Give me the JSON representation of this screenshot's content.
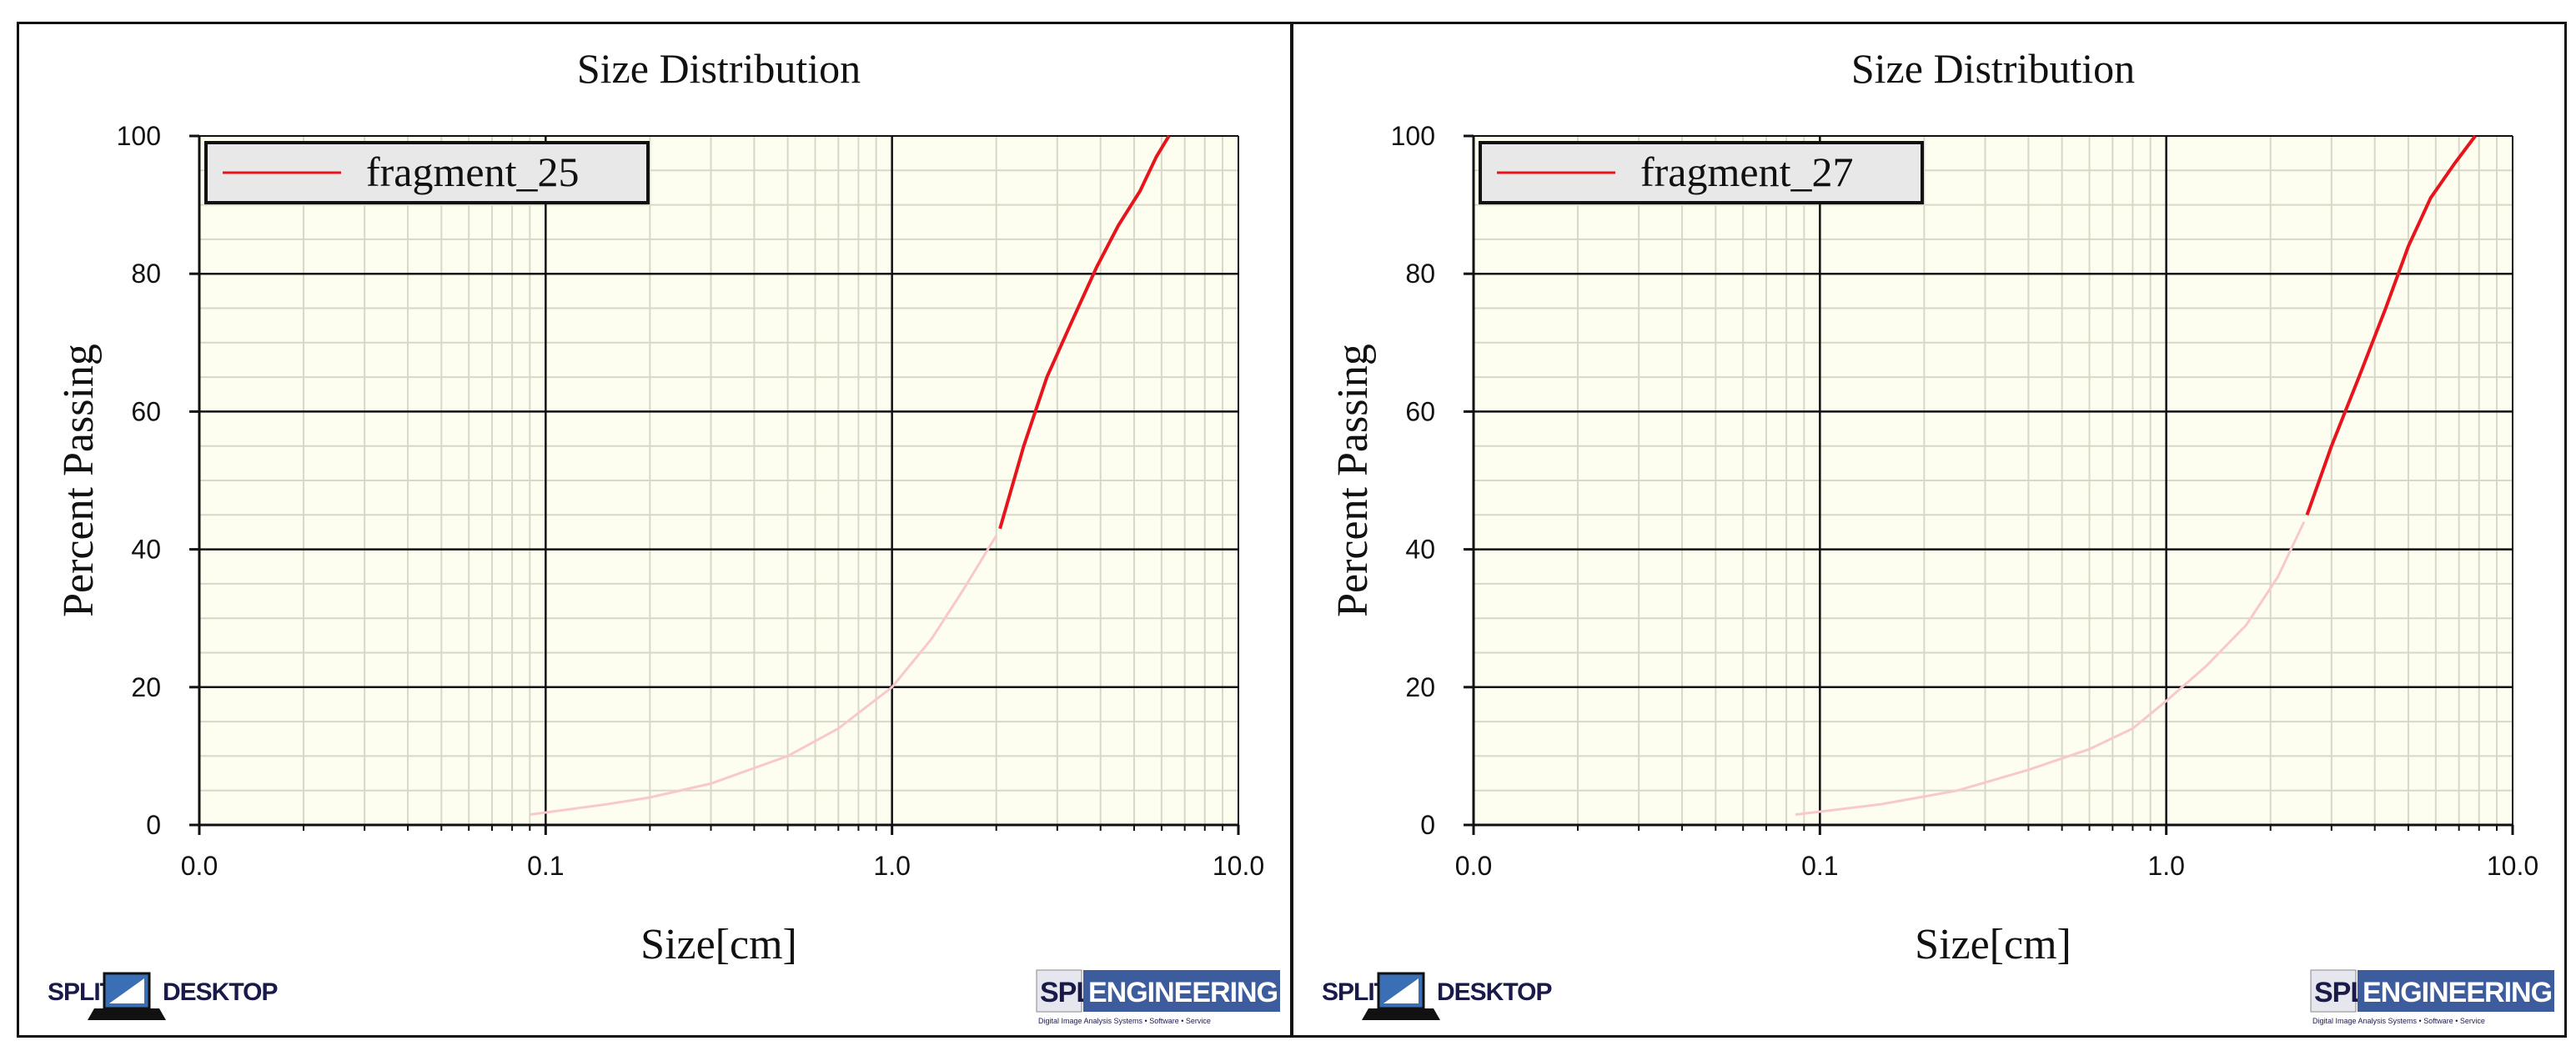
{
  "chart_data": [
    {
      "type": "line",
      "title": "Size Distribution",
      "xlabel": "Size[cm]",
      "ylabel": "Percent Passing",
      "xscale": "log",
      "xlim": [
        0.01,
        10
      ],
      "ylim": [
        0,
        100
      ],
      "x_tick_labels": [
        "0.0",
        "0.1",
        "1.0",
        "10.0"
      ],
      "y_tick_labels": [
        "0",
        "20",
        "40",
        "60",
        "80",
        "100"
      ],
      "grid": true,
      "legend_position": "top-left",
      "series": [
        {
          "name": "fragment_25",
          "color": "#e8141b",
          "faint_color": "#f8c8cc",
          "faint_x": [
            0.09,
            0.15,
            0.2,
            0.3,
            0.5,
            0.7,
            1.0,
            1.3,
            1.6,
            2.0
          ],
          "faint_y": [
            1.5,
            3.0,
            4.0,
            6.0,
            10.0,
            14.0,
            20.0,
            27.0,
            34.0,
            42.0
          ],
          "x": [
            2.05,
            2.4,
            2.8,
            3.3,
            3.9,
            4.5,
            5.2,
            5.8,
            6.3
          ],
          "y": [
            43.0,
            55.0,
            65.0,
            73.0,
            81.0,
            87.0,
            92.0,
            97.0,
            100.0
          ]
        }
      ],
      "logos": {
        "left_prefix": "SPLIT",
        "left_suffix": "DESKTOP",
        "right_prefix": "SPLIT",
        "right_suffix": "ENGINEERING",
        "right_tagline": "Digital Image Analysis Systems • Software • Service"
      }
    },
    {
      "type": "line",
      "title": "Size Distribution",
      "xlabel": "Size[cm]",
      "ylabel": "Percent Passing",
      "xscale": "log",
      "xlim": [
        0.01,
        10
      ],
      "ylim": [
        0,
        100
      ],
      "x_tick_labels": [
        "0.0",
        "0.1",
        "1.0",
        "10.0"
      ],
      "y_tick_labels": [
        "0",
        "20",
        "40",
        "60",
        "80",
        "100"
      ],
      "grid": true,
      "legend_position": "top-left",
      "series": [
        {
          "name": "fragment_27",
          "color": "#e8141b",
          "faint_color": "#f8c8cc",
          "faint_x": [
            0.085,
            0.15,
            0.25,
            0.4,
            0.6,
            0.8,
            1.0,
            1.3,
            1.7,
            2.1,
            2.5
          ],
          "faint_y": [
            1.5,
            3.0,
            5.0,
            8.0,
            11.0,
            14.0,
            18.0,
            23.0,
            29.0,
            36.0,
            44.0
          ],
          "x": [
            2.55,
            3.0,
            3.6,
            4.3,
            5.0,
            5.8,
            6.8,
            7.8
          ],
          "y": [
            45.0,
            55.0,
            65.0,
            75.0,
            84.0,
            91.0,
            96.0,
            100.0
          ]
        }
      ],
      "logos": {
        "left_prefix": "SPLIT",
        "left_suffix": "DESKTOP",
        "right_prefix": "SPLIT",
        "right_suffix": "ENGINEERING",
        "right_tagline": "Digital Image Analysis Systems • Software • Service"
      }
    }
  ]
}
